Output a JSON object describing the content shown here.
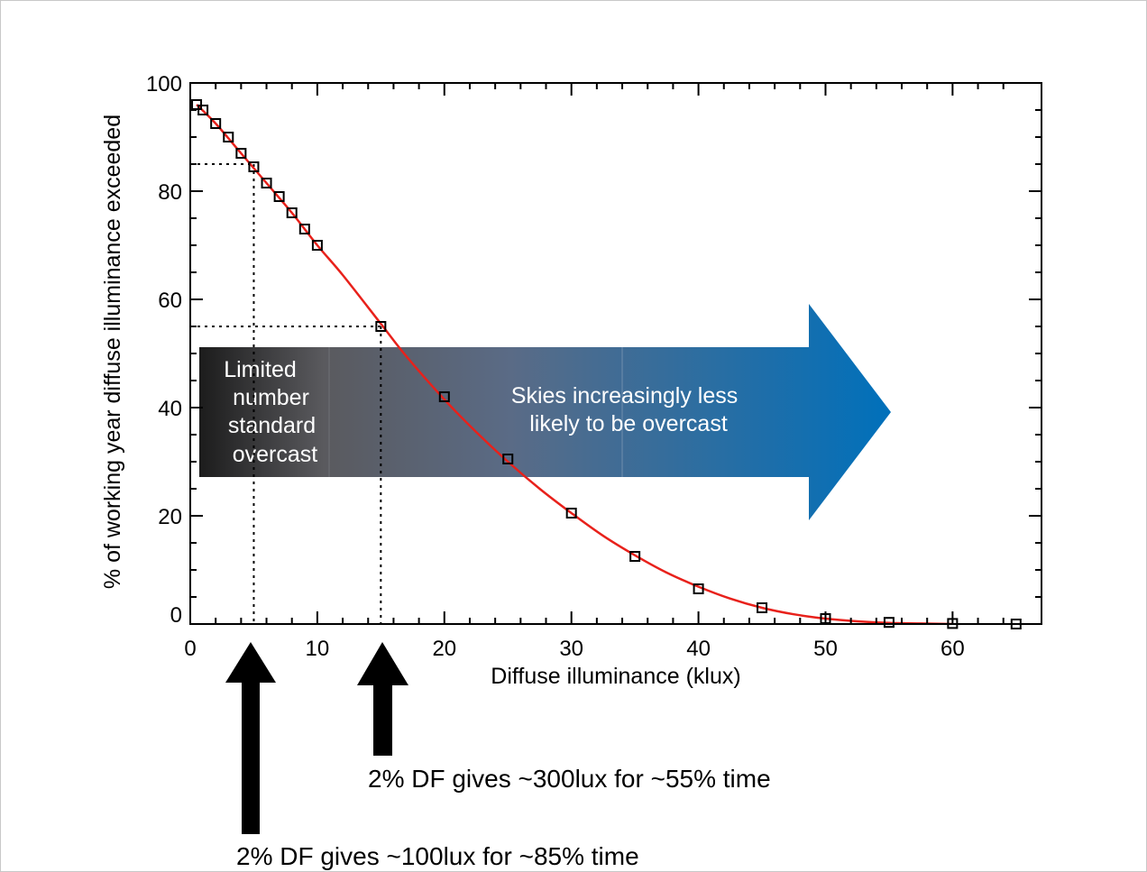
{
  "chart_data": {
    "type": "line",
    "xlabel": "Diffuse illuminance (klux)",
    "ylabel": "% of working year diffuse illuminance exceeded",
    "xlim": [
      0,
      67
    ],
    "ylim": [
      0,
      100
    ],
    "xticks": [
      0,
      10,
      20,
      30,
      40,
      50,
      60
    ],
    "yticks": [
      0,
      20,
      40,
      60,
      80,
      100
    ],
    "xtick_labels": [
      "0",
      "10",
      "20",
      "30",
      "40",
      "50",
      "60"
    ],
    "ytick_labels": [
      "0",
      "20",
      "40",
      "60",
      "80",
      "100"
    ],
    "grid": false,
    "series": [
      {
        "kind": "markers",
        "marker": "square",
        "color": "#000000",
        "x": [
          0.5,
          1,
          2,
          3,
          4,
          5,
          6,
          7,
          8,
          9,
          10,
          15,
          20,
          25,
          30,
          35,
          40,
          45,
          50,
          55,
          60,
          65
        ],
        "y": [
          96,
          95,
          92.5,
          90,
          87,
          84.5,
          81.5,
          79,
          76,
          73,
          70,
          55,
          42,
          30.5,
          20.5,
          12.5,
          6.5,
          3,
          1,
          0.3,
          0.1,
          0
        ]
      },
      {
        "kind": "curve",
        "color": "#e8211b",
        "x": [
          0.5,
          2,
          4,
          6,
          8,
          10,
          12,
          15,
          17,
          20,
          22.5,
          25,
          27.5,
          30,
          32.5,
          35,
          37.5,
          40,
          42.5,
          45,
          47.5,
          50,
          52.5,
          55,
          57.5,
          60
        ],
        "y": [
          96,
          92.5,
          87,
          81.5,
          76,
          70,
          64.5,
          55.5,
          49.5,
          41.5,
          35.5,
          30,
          25,
          20.5,
          16.3,
          12.7,
          9.5,
          6.9,
          4.7,
          3.0,
          1.8,
          1.0,
          0.5,
          0.2,
          0.1,
          0
        ]
      }
    ],
    "reference_lines": [
      {
        "x": 5,
        "y": 85
      },
      {
        "x": 15,
        "y": 55
      }
    ],
    "band": {
      "label_left": "Limited number standard overcast",
      "label_right": "Skies increasingly less likely to be overcast",
      "color_start": "#1c1c1c",
      "color_end": "#0070bb"
    },
    "annotations": [
      {
        "x": 15,
        "text": "2% DF gives ~300lux for ~55% time"
      },
      {
        "x": 5,
        "text": "2% DF gives ~100lux for ~85% time"
      }
    ]
  }
}
